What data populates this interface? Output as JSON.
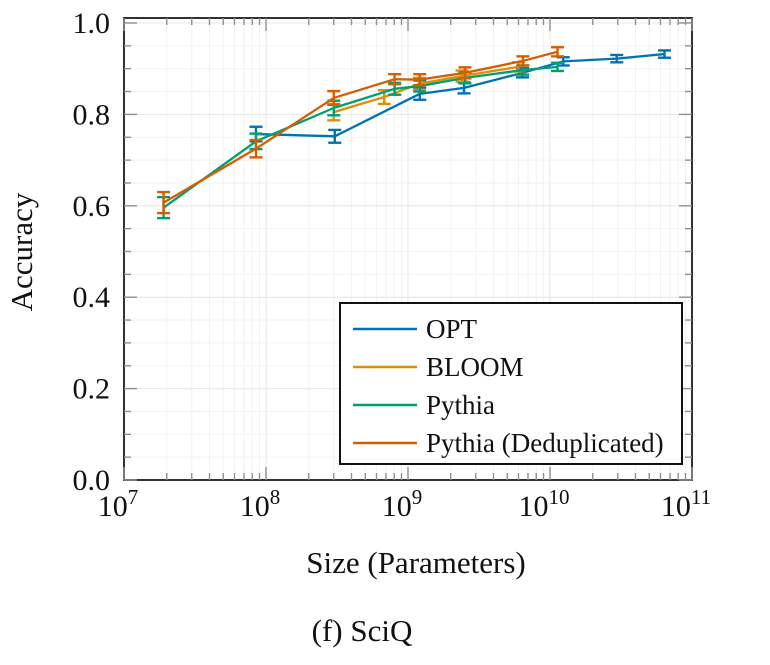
{
  "figure": {
    "caption": "(f) SciQ"
  },
  "chart_data": {
    "type": "line",
    "title": "",
    "xlabel": "Size (Parameters)",
    "ylabel": "Accuracy",
    "x_scale": "log10",
    "xlim_log10": [
      7,
      11.06
    ],
    "ylim": [
      0.0,
      1.01
    ],
    "grid": "on (major + minor, very light gray)",
    "x_ticks": [
      {
        "base": "10",
        "exp": "7",
        "log10": 7
      },
      {
        "base": "10",
        "exp": "8",
        "log10": 8
      },
      {
        "base": "10",
        "exp": "9",
        "log10": 9
      },
      {
        "base": "10",
        "exp": "10",
        "log10": 10
      },
      {
        "base": "10",
        "exp": "11",
        "log10": 11
      }
    ],
    "y_ticks": [
      {
        "value": 0.0,
        "label": "0.0"
      },
      {
        "value": 0.2,
        "label": "0.2"
      },
      {
        "value": 0.4,
        "label": "0.4"
      },
      {
        "value": 0.6,
        "label": "0.6"
      },
      {
        "value": 0.8,
        "label": "0.8"
      },
      {
        "value": 1.0,
        "label": "1.0"
      }
    ],
    "y_minor_step": 0.05,
    "legend": {
      "position": "lower right",
      "border_color": "#111111",
      "fill": "#ffffff"
    },
    "series": [
      {
        "name": "OPT",
        "color": "#0173b2",
        "points_x_y_err": [
          [
            85000000.0,
            0.757,
            0.016
          ],
          [
            305000000.0,
            0.752,
            0.014
          ],
          [
            1210000000.0,
            0.845,
            0.013
          ],
          [
            2480000000.0,
            0.858,
            0.012
          ],
          [
            6400000000.0,
            0.891,
            0.01
          ],
          [
            12400000000.0,
            0.916,
            0.009
          ],
          [
            29500000000.0,
            0.922,
            0.008
          ],
          [
            64000000000.0,
            0.932,
            0.008
          ]
        ]
      },
      {
        "name": "BLOOM",
        "color": "#de8f05",
        "points_x_y_err": [
          [
            300000000.0,
            0.805,
            0.018
          ],
          [
            680000000.0,
            0.838,
            0.015
          ],
          [
            1200000000.0,
            0.867,
            0.013
          ],
          [
            2400000000.0,
            0.884,
            0.012
          ],
          [
            6000000000.0,
            0.904,
            0.01
          ]
        ]
      },
      {
        "name": "Pythia",
        "color": "#029e73",
        "points_x_y_err": [
          [
            19000000.0,
            0.596,
            0.023
          ],
          [
            85000000.0,
            0.741,
            0.017
          ],
          [
            300000000.0,
            0.814,
            0.016
          ],
          [
            805000000.0,
            0.856,
            0.013
          ],
          [
            1210000000.0,
            0.862,
            0.012
          ],
          [
            2520000000.0,
            0.88,
            0.012
          ],
          [
            6440000000.0,
            0.897,
            0.01
          ],
          [
            11300000000.0,
            0.904,
            0.009
          ]
        ]
      },
      {
        "name": "Pythia (Deduplicated)",
        "color": "#d55e00",
        "points_x_y_err": [
          [
            19000000.0,
            0.607,
            0.023
          ],
          [
            85000000.0,
            0.725,
            0.019
          ],
          [
            300000000.0,
            0.836,
            0.015
          ],
          [
            805000000.0,
            0.877,
            0.011
          ],
          [
            1210000000.0,
            0.876,
            0.012
          ],
          [
            2520000000.0,
            0.891,
            0.012
          ],
          [
            6440000000.0,
            0.917,
            0.01
          ],
          [
            11300000000.0,
            0.937,
            0.01
          ]
        ]
      }
    ]
  }
}
